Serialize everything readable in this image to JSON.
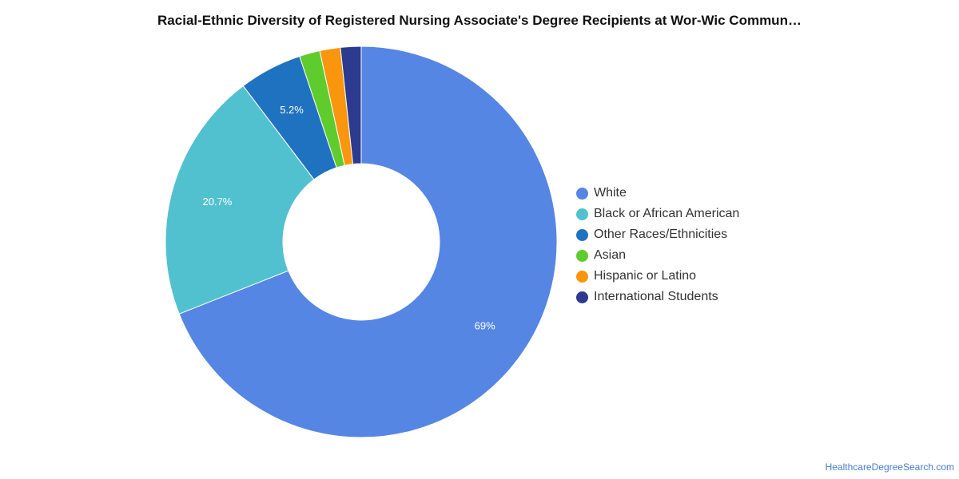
{
  "chart_data": {
    "type": "pie",
    "variant": "donut",
    "title": "Racial-Ethnic Diversity of Registered Nursing Associate's Degree Recipients at Wor-Wic Commun…",
    "legend_position": "right",
    "slices": [
      {
        "label": "White",
        "value": 69.0,
        "display": "69%",
        "color": "#5586e3"
      },
      {
        "label": "Black or African American",
        "value": 20.7,
        "display": "20.7%",
        "color": "#52c1cf"
      },
      {
        "label": "Other Races/Ethnicities",
        "value": 5.2,
        "display": "5.2%",
        "color": "#1f72bf"
      },
      {
        "label": "Asian",
        "value": 1.7,
        "display": "",
        "color": "#5fcc2e"
      },
      {
        "label": "Hispanic or Latino",
        "value": 1.7,
        "display": "",
        "color": "#f9960d"
      },
      {
        "label": "International Students",
        "value": 1.7,
        "display": "",
        "color": "#2c3b90"
      }
    ]
  },
  "footer": {
    "credit": "HealthcareDegreeSearch.com"
  }
}
